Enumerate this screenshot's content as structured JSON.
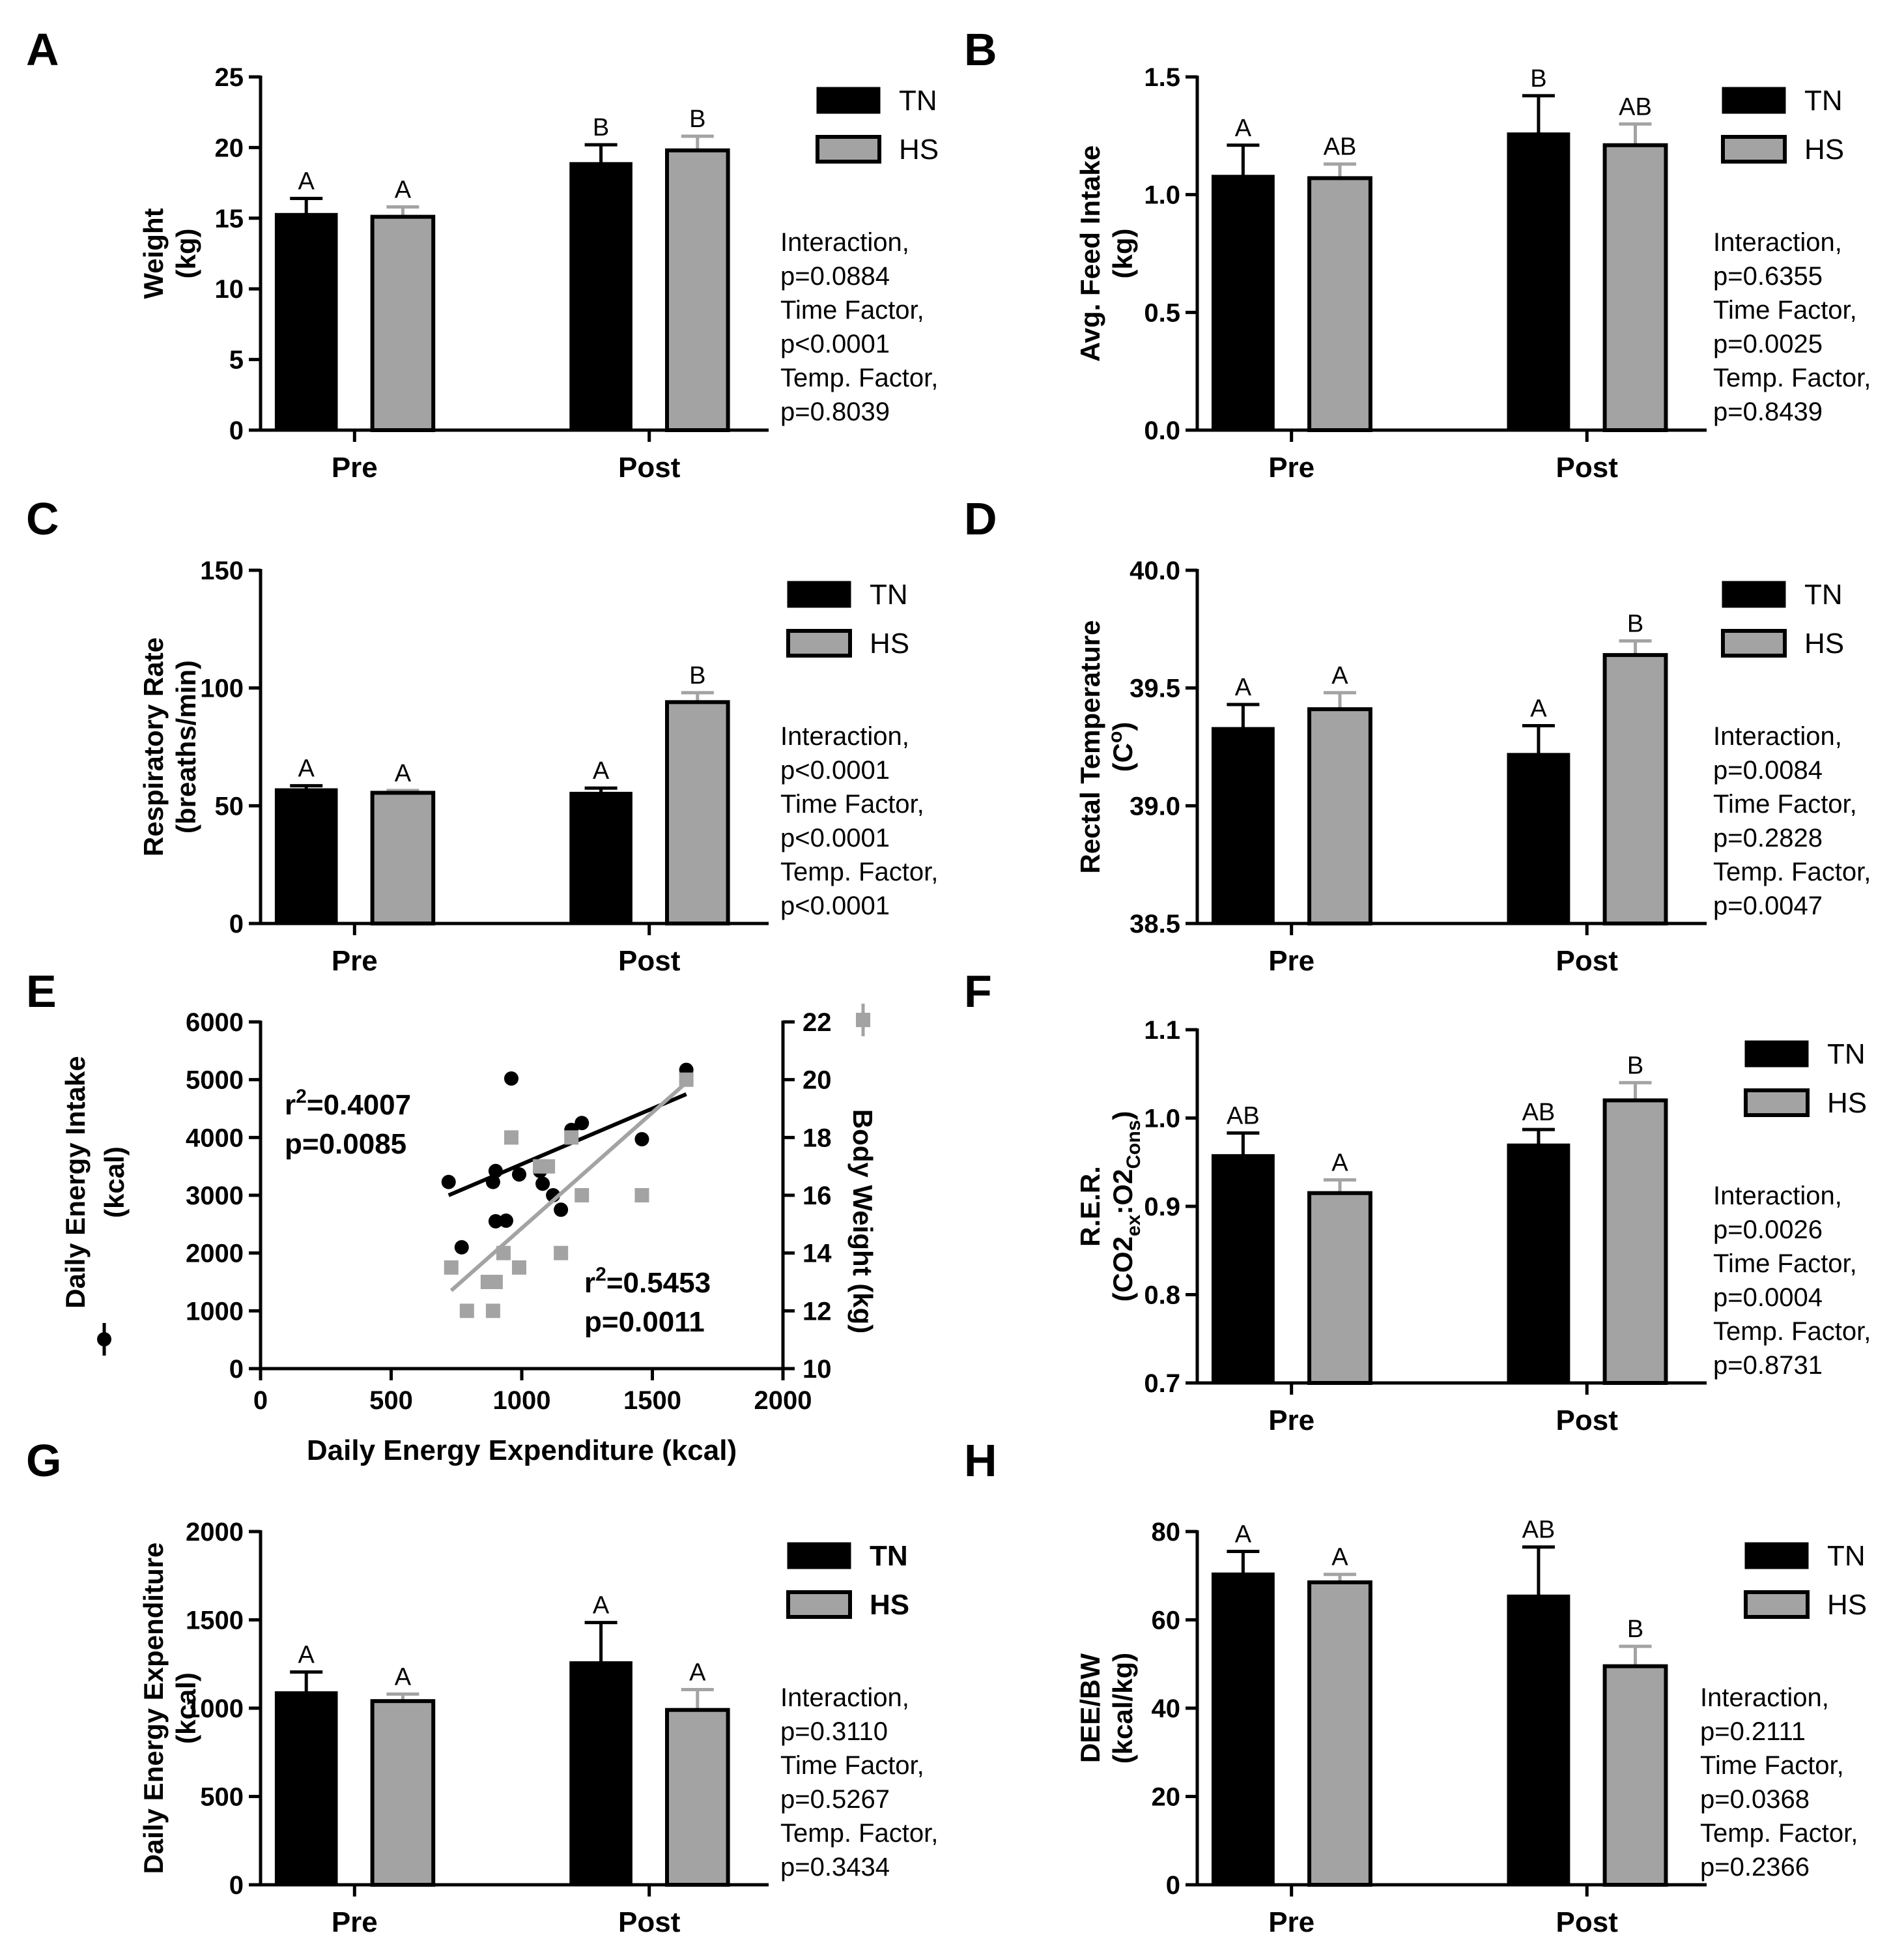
{
  "colors": {
    "TN": "#000000",
    "HS": "#a3a3a3",
    "HS_line": "#a3a3a3",
    "edge": "#000000"
  },
  "chart_data": [
    {
      "panel": "A",
      "type": "bar",
      "categories": [
        "Pre",
        "Post"
      ],
      "ylabel_lines": [
        "Weight",
        "(kg)"
      ],
      "ylim": [
        0,
        25
      ],
      "yticks": [
        "0",
        "5",
        "10",
        "15",
        "20",
        "25"
      ],
      "series": [
        {
          "name": "TN",
          "values": [
            15.3,
            18.9
          ],
          "errors": [
            1.1,
            1.3
          ],
          "letters": [
            "A",
            "B"
          ]
        },
        {
          "name": "HS",
          "values": [
            15.1,
            19.8
          ],
          "errors": [
            0.7,
            1.0
          ],
          "letters": [
            "A",
            "B"
          ]
        }
      ],
      "legend": [
        "TN",
        "HS"
      ],
      "legend_bold": false,
      "stats": [
        "Interaction,",
        "p=0.0884",
        "Time Factor,",
        "p<0.0001",
        "Temp. Factor,",
        "p=0.8039"
      ]
    },
    {
      "panel": "B",
      "type": "bar",
      "categories": [
        "Pre",
        "Post"
      ],
      "ylabel_lines": [
        "Avg. Feed Intake",
        "(kg)"
      ],
      "ylim": [
        0,
        1.5
      ],
      "yticks": [
        "0.0",
        "0.5",
        "1.0",
        "1.5"
      ],
      "series": [
        {
          "name": "TN",
          "values": [
            1.08,
            1.26
          ],
          "errors": [
            0.13,
            0.16
          ],
          "letters": [
            "A",
            "B"
          ]
        },
        {
          "name": "HS",
          "values": [
            1.07,
            1.21
          ],
          "errors": [
            0.06,
            0.09
          ],
          "letters": [
            "AB",
            "AB"
          ]
        }
      ],
      "legend": [
        "TN",
        "HS"
      ],
      "legend_bold": false,
      "stats": [
        "Interaction,",
        "p=0.6355",
        "Time Factor,",
        "p=0.0025",
        "Temp. Factor,",
        "p=0.8439"
      ]
    },
    {
      "panel": "C",
      "type": "bar",
      "categories": [
        "Pre",
        "Post"
      ],
      "ylabel_lines": [
        "Respiratory Rate",
        "(breaths/min)"
      ],
      "ylim": [
        0,
        150
      ],
      "yticks": [
        "0",
        "50",
        "100",
        "150"
      ],
      "series": [
        {
          "name": "TN",
          "values": [
            57,
            55.5
          ],
          "errors": [
            1.5,
            2.0
          ],
          "letters": [
            "A",
            "A"
          ]
        },
        {
          "name": "HS",
          "values": [
            55.5,
            94
          ],
          "errors": [
            1.0,
            4.0
          ],
          "letters": [
            "A",
            "B"
          ]
        }
      ],
      "legend": [
        "TN",
        "HS"
      ],
      "legend_bold": false,
      "stats": [
        "Interaction,",
        "p<0.0001",
        "Time Factor,",
        "p<0.0001",
        "Temp. Factor,",
        "p<0.0001"
      ]
    },
    {
      "panel": "D",
      "type": "bar",
      "categories": [
        "Pre",
        "Post"
      ],
      "ylabel_lines": [
        "Rectal Temperature",
        "(C°)"
      ],
      "ylim": [
        38.5,
        40.0
      ],
      "yticks": [
        "38.5",
        "39.0",
        "39.5",
        "40.0"
      ],
      "series": [
        {
          "name": "TN",
          "values": [
            39.33,
            39.22
          ],
          "errors": [
            0.1,
            0.12
          ],
          "letters": [
            "A",
            "A"
          ]
        },
        {
          "name": "HS",
          "values": [
            39.41,
            39.64
          ],
          "errors": [
            0.07,
            0.06
          ],
          "letters": [
            "A",
            "B"
          ]
        }
      ],
      "legend": [
        "TN",
        "HS"
      ],
      "legend_bold": false,
      "stats": [
        "Interaction,",
        "p=0.0084",
        "Time Factor,",
        "p=0.2828",
        "Temp. Factor,",
        "p=0.0047"
      ]
    },
    {
      "panel": "E",
      "type": "scatter",
      "xlabel": "Daily Energy Expenditure (kcal)",
      "ylabel_left_lines": [
        "Daily Energy Intake",
        "(kcal)"
      ],
      "ylabel_right": "Body Weight (kg)",
      "xlim": [
        0,
        2000
      ],
      "xticks": [
        "0",
        "500",
        "1000",
        "1500",
        "2000"
      ],
      "ylim_left": [
        0,
        6000
      ],
      "yticks_left": [
        "0",
        "1000",
        "2000",
        "3000",
        "4000",
        "5000",
        "6000"
      ],
      "ylim_right": [
        10,
        22
      ],
      "yticks_right": [
        "10",
        "12",
        "14",
        "16",
        "18",
        "20",
        "22"
      ],
      "series": [
        {
          "name": "Daily Energy Intake",
          "axis": "left",
          "marker": "circle",
          "x": [
            720,
            770,
            890,
            900,
            900,
            940,
            960,
            990,
            1070,
            1080,
            1120,
            1150,
            1190,
            1230,
            1460,
            1630
          ],
          "y": [
            3230,
            2100,
            3230,
            2550,
            3420,
            2560,
            5020,
            3360,
            3420,
            3200,
            3000,
            2750,
            4130,
            4250,
            3970,
            5170
          ],
          "fit": {
            "x": [
              720,
              1630
            ],
            "y": [
              3000,
              4750
            ]
          }
        },
        {
          "name": "Body Weight",
          "axis": "right",
          "marker": "square",
          "x": [
            730,
            790,
            870,
            890,
            900,
            930,
            960,
            990,
            1070,
            1100,
            1150,
            1190,
            1230,
            1460,
            1630
          ],
          "y": [
            13.5,
            12,
            13,
            12,
            13,
            14,
            18,
            13.5,
            17,
            17,
            14,
            18,
            16,
            16,
            20
          ],
          "fit": {
            "x": [
              730,
              1630
            ],
            "y": [
              12.7,
              19.9
            ]
          }
        }
      ],
      "annotations": [
        {
          "r2_label": "r",
          "r2_sup": "2",
          "r2_value": "=0.4007",
          "p": "p=0.0085"
        },
        {
          "r2_label": "r",
          "r2_sup": "2",
          "r2_value": "=0.5453",
          "p": "p=0.0011"
        }
      ]
    },
    {
      "panel": "F",
      "type": "bar",
      "categories": [
        "Pre",
        "Post"
      ],
      "ylabel_lines": [
        "R.E.R.",
        "(CO2ex:O2Cons)"
      ],
      "ylim": [
        0.7,
        1.1
      ],
      "yticks": [
        "0.7",
        "0.8",
        "0.9",
        "1.0",
        "1.1"
      ],
      "series": [
        {
          "name": "TN",
          "values": [
            0.958,
            0.97
          ],
          "errors": [
            0.025,
            0.017
          ],
          "letters": [
            "AB",
            "AB"
          ]
        },
        {
          "name": "HS",
          "values": [
            0.915,
            1.02
          ],
          "errors": [
            0.015,
            0.02
          ],
          "letters": [
            "A",
            "B"
          ]
        }
      ],
      "legend": [
        "TN",
        "HS"
      ],
      "legend_bold": false,
      "stats": [
        "Interaction,",
        "p=0.0026",
        "Time Factor,",
        "p=0.0004",
        "Temp. Factor,",
        "p=0.8731"
      ]
    },
    {
      "panel": "G",
      "type": "bar",
      "categories": [
        "Pre",
        "Post"
      ],
      "ylabel_lines": [
        "Daily Energy Expenditure",
        "(kcal)"
      ],
      "ylim": [
        0,
        2000
      ],
      "yticks": [
        "0",
        "500",
        "1000",
        "1500",
        "2000"
      ],
      "series": [
        {
          "name": "TN",
          "values": [
            1090,
            1260
          ],
          "errors": [
            115,
            225
          ],
          "letters": [
            "A",
            "A"
          ]
        },
        {
          "name": "HS",
          "values": [
            1040,
            990
          ],
          "errors": [
            40,
            115
          ],
          "letters": [
            "A",
            "A"
          ]
        }
      ],
      "legend": [
        "TN",
        "HS"
      ],
      "legend_bold": true,
      "stats": [
        "Interaction,",
        "p=0.3110",
        "Time Factor,",
        "p=0.5267",
        "Temp. Factor,",
        "p=0.3434"
      ]
    },
    {
      "panel": "H",
      "type": "bar",
      "categories": [
        "Pre",
        "Post"
      ],
      "ylabel_lines": [
        "DEE/BW",
        "(kcal/kg)"
      ],
      "ylim": [
        0,
        80
      ],
      "yticks": [
        "0",
        "20",
        "40",
        "60",
        "80"
      ],
      "series": [
        {
          "name": "TN",
          "values": [
            70.5,
            65.5
          ],
          "errors": [
            5,
            11
          ],
          "letters": [
            "A",
            "AB"
          ]
        },
        {
          "name": "HS",
          "values": [
            68.5,
            49.5
          ],
          "errors": [
            1.8,
            4.5
          ],
          "letters": [
            "A",
            "B"
          ]
        }
      ],
      "legend": [
        "TN",
        "HS"
      ],
      "legend_bold": false,
      "stats": [
        "Interaction,",
        "p=0.2111",
        "Time Factor,",
        "p=0.0368",
        "Temp. Factor,",
        "p=0.2366"
      ]
    }
  ]
}
